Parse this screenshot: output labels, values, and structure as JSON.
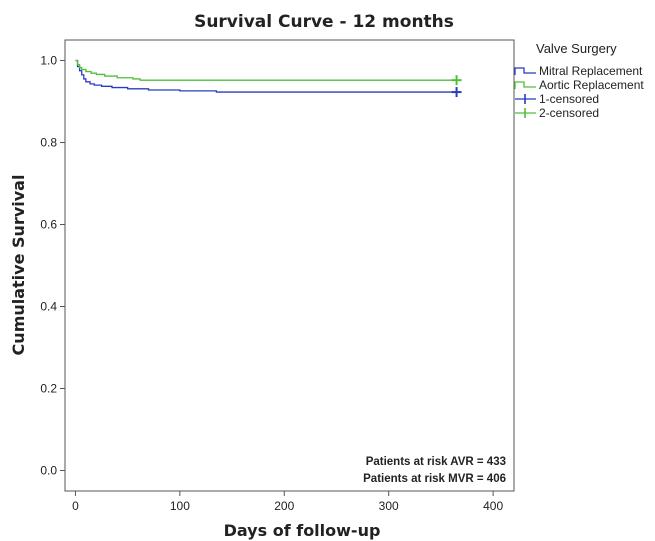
{
  "chart_data": {
    "type": "line",
    "title": "Survival Curve - 12 months",
    "xlabel": "Days of follow-up",
    "ylabel": "Cumulative Survival",
    "xlim": [
      -10,
      420
    ],
    "ylim": [
      -0.05,
      1.05
    ],
    "xticks": [
      0,
      100,
      200,
      300,
      400
    ],
    "yticks": [
      0.0,
      0.2,
      0.4,
      0.6,
      0.8,
      1.0
    ],
    "xtick_labels": [
      "0",
      "100",
      "200",
      "300",
      "400"
    ],
    "ytick_labels": [
      "0.0",
      "0.2",
      "0.4",
      "0.6",
      "0.8",
      "1.0"
    ],
    "grid": false,
    "legend": {
      "title": "Valve Surgery",
      "placement": "right",
      "entries": [
        "Mitral Replacement",
        "Aortic Replacement",
        "1-censored",
        "2-censored"
      ]
    },
    "series": [
      {
        "name": "Mitral Replacement",
        "color": "#2b3bbf",
        "step": true,
        "x": [
          0,
          2,
          4,
          6,
          8,
          10,
          14,
          18,
          25,
          35,
          50,
          70,
          100,
          135,
          365
        ],
        "y": [
          1.0,
          0.985,
          0.975,
          0.965,
          0.955,
          0.948,
          0.943,
          0.94,
          0.937,
          0.934,
          0.931,
          0.928,
          0.926,
          0.923,
          0.923
        ]
      },
      {
        "name": "Aortic Replacement",
        "color": "#4fbf3a",
        "step": true,
        "x": [
          0,
          2,
          4,
          6,
          10,
          15,
          20,
          28,
          40,
          55,
          62,
          365
        ],
        "y": [
          1.0,
          0.99,
          0.983,
          0.978,
          0.973,
          0.969,
          0.966,
          0.962,
          0.958,
          0.955,
          0.952,
          0.952
        ]
      }
    ],
    "censored": [
      {
        "name": "1-censored",
        "color": "#2b3bbf",
        "x": [
          365
        ],
        "y": [
          0.923
        ]
      },
      {
        "name": "2-censored",
        "color": "#4fbf3a",
        "x": [
          365
        ],
        "y": [
          0.952
        ]
      }
    ],
    "annotations": [
      "Patients at risk AVR = 433",
      "Patients at risk MVR = 406"
    ]
  }
}
